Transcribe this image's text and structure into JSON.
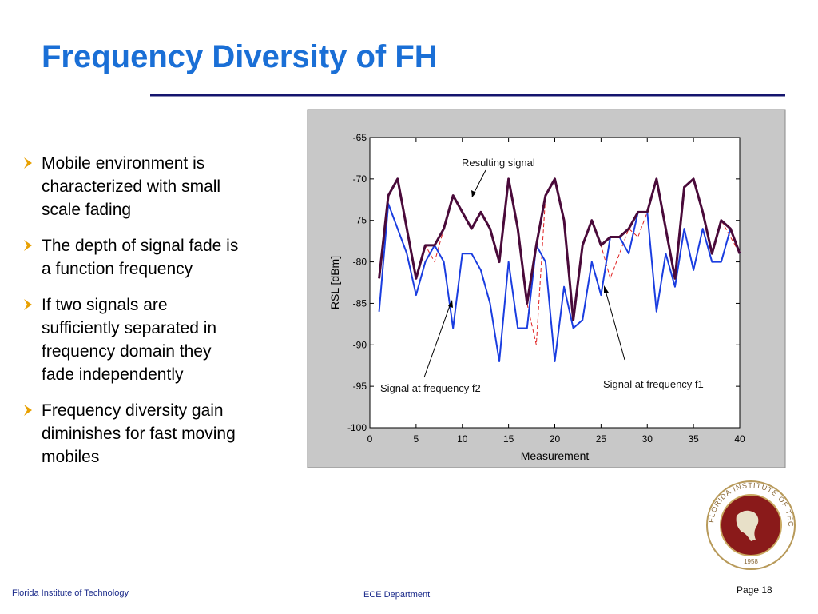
{
  "header": {
    "title": "Frequency Diversity of FH"
  },
  "bullets": [
    [
      "Mobile environment is",
      "characterized with small",
      "scale fading"
    ],
    [
      "The depth of signal fade is",
      "a function frequency"
    ],
    [
      "If two signals are",
      "sufficiently separated in",
      "frequency domain they",
      "fade independently"
    ],
    [
      "Frequency diversity gain",
      "diminishes for fast moving",
      "mobiles"
    ]
  ],
  "chart_data": {
    "type": "line",
    "xlabel": "Measurement",
    "ylabel": "RSL [dBm]",
    "x": [
      1,
      2,
      3,
      4,
      5,
      6,
      7,
      8,
      9,
      10,
      11,
      12,
      13,
      14,
      15,
      16,
      17,
      18,
      19,
      20,
      21,
      22,
      23,
      24,
      25,
      26,
      27,
      28,
      29,
      30,
      31,
      32,
      33,
      34,
      35,
      36,
      37,
      38,
      39,
      40
    ],
    "series": [
      {
        "name": "Signal at frequency f1",
        "color": "#e02020",
        "dash": true,
        "values": [
          -82,
          -72,
          -70,
          -76,
          -82,
          -78,
          -80,
          -76,
          -72,
          -74,
          -76,
          -74,
          -76,
          -80,
          -70,
          -76,
          -85,
          -90,
          -72,
          -70,
          -75,
          -87,
          -78,
          -75,
          -78,
          -82,
          -79,
          -76,
          -77,
          -74,
          -70,
          -76,
          -82,
          -71,
          -70,
          -74,
          -79,
          -75,
          -77,
          -79
        ]
      },
      {
        "name": "Signal at frequency f2",
        "color": "#1a3de0",
        "dash": false,
        "values": [
          -86,
          -73,
          -76,
          -79,
          -84,
          -80,
          -78,
          -80,
          -88,
          -79,
          -79,
          -81,
          -85,
          -92,
          -80,
          -88,
          -88,
          -78,
          -80,
          -92,
          -83,
          -88,
          -87,
          -80,
          -84,
          -77,
          -77,
          -79,
          -74,
          -74,
          -86,
          -79,
          -83,
          -76,
          -81,
          -76,
          -80,
          -80,
          -76,
          -79
        ]
      },
      {
        "name": "Resulting signal",
        "color": "#4a0a3a",
        "dash": false,
        "values": [
          -82,
          -72,
          -70,
          -76,
          -82,
          -78,
          -78,
          -76,
          -72,
          -74,
          -76,
          -74,
          -76,
          -80,
          -70,
          -76,
          -85,
          -78,
          -72,
          -70,
          -75,
          -87,
          -78,
          -75,
          -78,
          -77,
          -77,
          -76,
          -74,
          -74,
          -70,
          -76,
          -82,
          -71,
          -70,
          -74,
          -79,
          -75,
          -76,
          -79
        ]
      }
    ],
    "xlim": [
      0,
      40
    ],
    "xticks": [
      0,
      5,
      10,
      15,
      20,
      25,
      30,
      35,
      40
    ],
    "ylim": [
      -100,
      -65
    ],
    "yticks": [
      -100,
      -95,
      -90,
      -85,
      -80,
      -75,
      -70,
      -65
    ]
  },
  "logo": {
    "name": "FLORIDA INSTITUTE OF TECHNOLOGY",
    "year": "1958"
  },
  "footer": {
    "left": "Florida Institute of Technology",
    "center": "ECE Department",
    "page": "Page 18"
  }
}
